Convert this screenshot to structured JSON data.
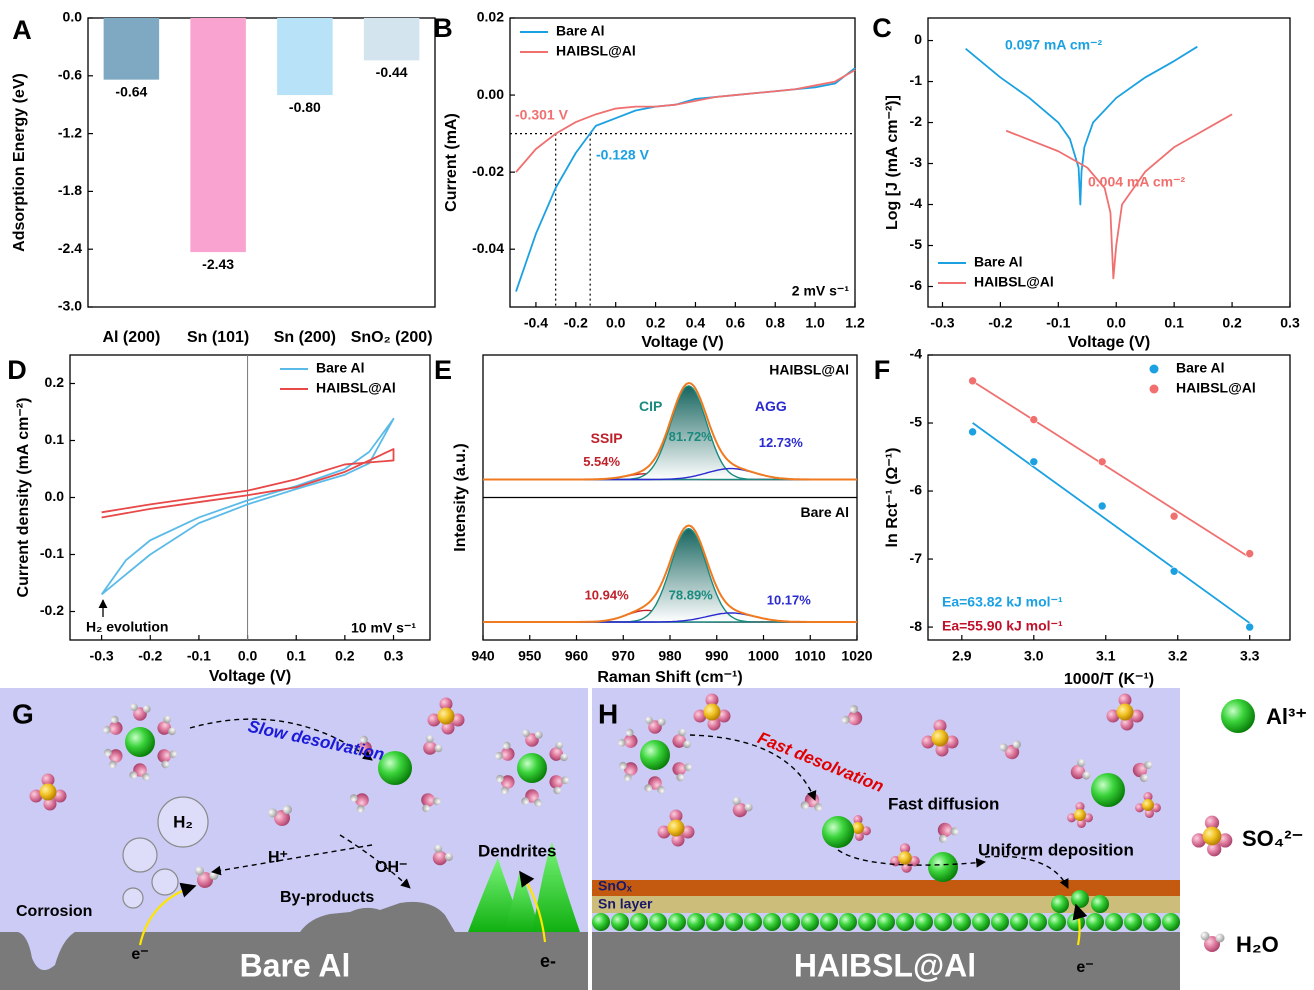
{
  "chart_data": [
    {
      "type": "bar",
      "panel": "A",
      "ylabel": "Adsorption Energy (eV)",
      "categories": [
        "Al (200)",
        "Sn (101)",
        "Sn (200)",
        "SnO₂ (200)"
      ],
      "values": [
        -0.64,
        -2.43,
        -0.8,
        -0.44
      ],
      "value_labels": [
        "-0.64",
        "-2.43",
        "-0.80",
        "-0.44"
      ],
      "colors": [
        "#7fa8c2",
        "#f9a3d0",
        "#b7e2f8",
        "#d3e4ee"
      ],
      "ylim": [
        -3,
        0
      ],
      "yticks": [
        {
          "value": -3,
          "label": "-3.0"
        },
        -2.4,
        -1.8,
        -1.2,
        -0.6,
        {
          "value": 0,
          "label": "0.0"
        }
      ]
    },
    {
      "type": "line",
      "panel": "B",
      "xlabel": "Voltage (V)",
      "ylabel": "Current (mA)",
      "x": [
        -0.5,
        -0.4,
        -0.3,
        -0.2,
        -0.1,
        0,
        0.1,
        0.2,
        0.3,
        0.4,
        0.5,
        0.6,
        0.7,
        0.8,
        0.9,
        1.0,
        1.1,
        1.2
      ],
      "series": [
        {
          "name": "Bare Al",
          "color": "#1ba1e2",
          "values": [
            -0.051,
            -0.036,
            -0.024,
            -0.015,
            -0.008,
            -0.006,
            -0.004,
            -0.003,
            -0.0025,
            -0.001,
            -0.0005,
            0,
            0.0005,
            0.001,
            0.0015,
            0.002,
            0.003,
            0.007
          ]
        },
        {
          "name": "HAIBSL@Al",
          "color": "#f07070",
          "values": [
            -0.02,
            -0.014,
            -0.01,
            -0.007,
            -0.005,
            -0.0035,
            -0.003,
            -0.003,
            -0.0025,
            -0.0015,
            -0.0005,
            0,
            0.0005,
            0.001,
            0.0015,
            0.0025,
            0.0035,
            0.0065
          ]
        }
      ],
      "xlim": [
        -0.53,
        1.2
      ],
      "xticks": [
        -0.4,
        -0.2,
        {
          "value": 0,
          "label": "0.0"
        },
        0.2,
        0.4,
        0.6,
        0.8,
        {
          "value": 1,
          "label": "1.0"
        },
        1.2
      ],
      "ylim": [
        -0.055,
        0.02
      ],
      "yticks": [
        -0.04,
        -0.02,
        {
          "value": 0,
          "label": "0.00"
        },
        0.02
      ],
      "legend": "upper left",
      "ref_lines": {
        "x": [
          -0.301,
          -0.128
        ],
        "y": [
          -0.01
        ]
      },
      "annotations": [
        {
          "text": "-0.301 V",
          "color": "#f07070"
        },
        {
          "text": "-0.128 V",
          "color": "#1ba1e2"
        },
        {
          "text": "2 mV s⁻¹",
          "color": "#000000"
        }
      ]
    },
    {
      "type": "line",
      "panel": "C",
      "xlabel": "Voltage (V)",
      "ylabel": "Log [J (mA cm⁻²)]",
      "series": [
        {
          "name": "Bare Al",
          "color": "#1ba1e2",
          "x": [
            -0.26,
            -0.2,
            -0.15,
            -0.1,
            -0.08,
            -0.065,
            -0.062,
            -0.06,
            -0.055,
            -0.04,
            0,
            0.05,
            0.1,
            0.14
          ],
          "values": [
            -0.2,
            -0.9,
            -1.4,
            -2.0,
            -2.4,
            -3.1,
            -4.0,
            -3.2,
            -2.6,
            -2.0,
            -1.4,
            -0.9,
            -0.5,
            -0.15
          ]
        },
        {
          "name": "HAIBSL@Al",
          "color": "#f07070",
          "x": [
            -0.19,
            -0.1,
            -0.05,
            -0.02,
            -0.01,
            -0.005,
            0,
            0.01,
            0.05,
            0.1,
            0.15,
            0.2
          ],
          "values": [
            -2.2,
            -2.7,
            -3.1,
            -3.6,
            -4.2,
            -5.8,
            -5.0,
            -4.0,
            -3.2,
            -2.6,
            -2.2,
            -1.8
          ]
        }
      ],
      "xlim": [
        -0.325,
        0.3
      ],
      "xticks": [
        -0.3,
        -0.2,
        -0.1,
        {
          "value": 0,
          "label": "0.0"
        },
        0.1,
        0.2,
        0.3
      ],
      "ylim": [
        -6.5,
        0.55
      ],
      "yticks": [
        0,
        -1,
        -2,
        -3,
        -4,
        -5,
        -6
      ],
      "legend": "lower left",
      "annotations": [
        {
          "text": "0.097 mA cm⁻²",
          "color": "#1ba1e2"
        },
        {
          "text": "0.004 mA cm⁻²",
          "color": "#f07070"
        }
      ]
    },
    {
      "type": "line",
      "panel": "D",
      "xlabel": "Voltage (V)",
      "ylabel": "Current density (mA cm⁻²)",
      "series": [
        {
          "name": "Bare Al",
          "color": "#5bbbe8",
          "x": [
            -0.3,
            -0.25,
            -0.2,
            -0.1,
            0,
            0.1,
            0.2,
            0.25,
            0.3,
            0.25,
            0.2,
            0.1,
            0,
            -0.1,
            -0.2,
            -0.25,
            -0.3
          ],
          "values": [
            -0.17,
            -0.11,
            -0.075,
            -0.035,
            -0.005,
            0.02,
            0.05,
            0.08,
            0.138,
            0.06,
            0.04,
            0.015,
            -0.012,
            -0.045,
            -0.1,
            -0.135,
            -0.17
          ]
        },
        {
          "name": "HAIBSL@Al",
          "color": "#e84848",
          "x": [
            -0.3,
            -0.2,
            -0.1,
            0,
            0.1,
            0.2,
            0.3,
            0.3,
            0.2,
            0.1,
            0,
            -0.1,
            -0.2,
            -0.3
          ],
          "values": [
            -0.035,
            -0.02,
            -0.008,
            0.004,
            0.018,
            0.045,
            0.085,
            0.065,
            0.058,
            0.032,
            0.012,
            0.0,
            -0.012,
            -0.026
          ]
        }
      ],
      "xlim": [
        -0.365,
        0.375
      ],
      "xticks": [
        -0.3,
        -0.2,
        -0.1,
        {
          "value": 0,
          "label": "0.0"
        },
        0.1,
        0.2,
        0.3
      ],
      "ylim": [
        -0.25,
        0.25
      ],
      "yticks": [
        -0.2,
        -0.1,
        {
          "value": 0,
          "label": "0.0"
        },
        0.1,
        0.2
      ],
      "legend": "upper right",
      "annotations": [
        {
          "text": "H₂ evolution",
          "color": "#000000"
        },
        {
          "text": "10 mV s⁻¹",
          "color": "#000000"
        }
      ]
    },
    {
      "type": "raman",
      "panel": "E",
      "xlabel": "Raman Shift (cm⁻¹)",
      "ylabel": "Intensity (a.u.)",
      "xlim": [
        940,
        1020
      ],
      "xticks": [
        940,
        950,
        960,
        970,
        980,
        990,
        1000,
        1010,
        1020
      ],
      "peak_names": [
        "SSIP",
        "CIP",
        "AGG"
      ],
      "colors": [
        "#c0202a",
        "#1a8a7e",
        "#2a2ad0"
      ],
      "panels": [
        {
          "name": "HAIBSL@Al",
          "centers": [
            975,
            984,
            993
          ],
          "fwhm": [
            10,
            9,
            12
          ],
          "values": [
            5.54,
            81.72,
            12.73
          ],
          "value_labels": [
            "5.54%",
            "81.72%",
            "12.73%"
          ]
        },
        {
          "name": "Bare Al",
          "centers": [
            975,
            984,
            993
          ],
          "fwhm": [
            10,
            9,
            12
          ],
          "values": [
            10.94,
            78.89,
            10.17
          ],
          "value_labels": [
            "10.94%",
            "78.89%",
            "10.17%"
          ]
        }
      ]
    },
    {
      "type": "scatter",
      "panel": "F",
      "xlabel": "1000/T (K⁻¹)",
      "ylabel": "ln Rct⁻¹ (Ω⁻¹)",
      "x": [
        2.915,
        3.0,
        3.095,
        3.195,
        3.3
      ],
      "series": [
        {
          "name": "Bare Al",
          "color": "#1ba1e2",
          "values": [
            -5.13,
            -5.57,
            -6.22,
            -7.18,
            -8.0
          ]
        },
        {
          "name": "HAIBSL@Al",
          "color": "#f07070",
          "values": [
            -4.38,
            -4.95,
            -5.57,
            -6.37,
            -6.92
          ]
        }
      ],
      "xlim": [
        2.853,
        3.356
      ],
      "xticks": [
        2.9,
        {
          "value": 3,
          "label": "3.0"
        },
        3.1,
        3.2,
        3.3
      ],
      "ylim": [
        -8.19,
        -4
      ],
      "yticks": [
        -4,
        -5,
        -6,
        -7,
        -8
      ],
      "legend": "upper right",
      "fit": true,
      "annotations": [
        {
          "text": "Ea=63.82 kJ mol⁻¹",
          "color": "#1ba1e2"
        },
        {
          "text": "Ea=55.90 kJ mol⁻¹",
          "color": "#c0102a"
        }
      ]
    }
  ],
  "schematic": {
    "G": {
      "label": "G",
      "arrow_label": "Slow desolvation",
      "h2": "H₂",
      "h_plus": "H⁺",
      "oh_minus": "OH⁻",
      "by_products": "By-products",
      "corrosion": "Corrosion",
      "dendrites": "Dendrites",
      "electron_1": "e⁻",
      "electron_2": "e-",
      "substrate": "Bare Al"
    },
    "H": {
      "label": "H",
      "arrow_label": "Fast desolvation",
      "diffusion": "Fast diffusion",
      "deposition": "Uniform deposition",
      "sno_layer": "SnOₓ",
      "sn_layer": "Sn layer",
      "electron": "e⁻",
      "substrate": "HAIBSL@Al"
    },
    "legend": [
      "Al³⁺",
      "SO₄²⁻",
      "H₂O"
    ]
  }
}
